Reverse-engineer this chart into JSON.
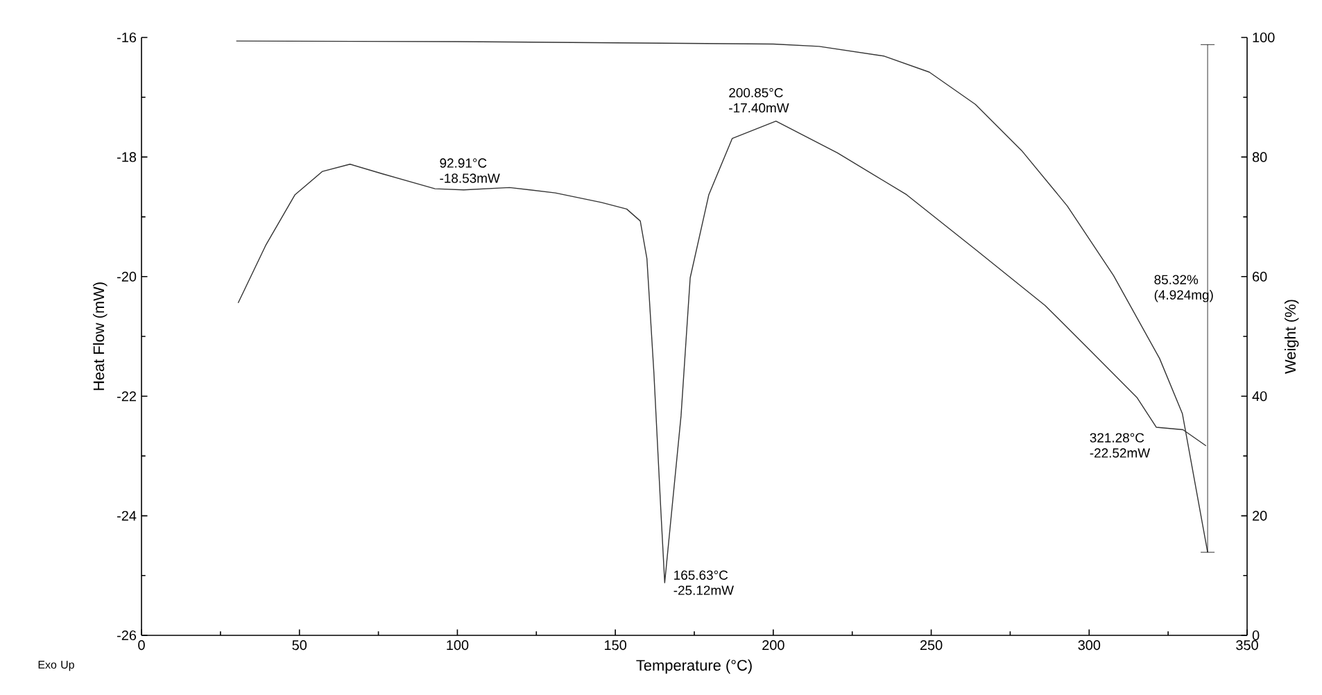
{
  "chart_data": {
    "type": "line",
    "xlabel": "Temperature (°C)",
    "ylabel": "Heat Flow (mW)",
    "y2label": "Weight (%)",
    "xlim": [
      0,
      350
    ],
    "xticks": [
      0,
      50,
      100,
      150,
      200,
      250,
      300,
      350
    ],
    "ylim": [
      -26,
      -16
    ],
    "yticks": [
      -26,
      -24,
      -22,
      -20,
      -18,
      -16
    ],
    "y2lim": [
      0,
      100
    ],
    "y2ticks": [
      0,
      20,
      40,
      60,
      80,
      100
    ],
    "series": [
      {
        "color": "#333333",
        "x": [
          30.6,
          39.3,
          48.6,
          57.3,
          66.0,
          76.2,
          92.91,
          102,
          116.5,
          131,
          145.6,
          153.6,
          157.9,
          160,
          162.2,
          164.4,
          165.63,
          170.8,
          173.7,
          179.6,
          187,
          200.85,
          220.3,
          242.2,
          264.1,
          286,
          300.6,
          315.1,
          321.28,
          329.7,
          337
        ],
        "values": [
          -20.44,
          -19.48,
          -18.63,
          -18.24,
          -18.12,
          -18.28,
          -18.53,
          -18.55,
          -18.51,
          -18.6,
          -18.76,
          -18.87,
          -19.07,
          -19.7,
          -21.6,
          -23.9,
          -25.12,
          -22.33,
          -20.02,
          -18.63,
          -17.69,
          -17.4,
          -17.93,
          -18.63,
          -19.55,
          -20.48,
          -21.25,
          -22.02,
          -22.52,
          -22.56,
          -22.83
        ]
      },
      {
        "color": "#333333",
        "axis": "y2",
        "x": [
          30,
          100,
          150,
          200,
          214.5,
          234.9,
          249.4,
          264,
          278.6,
          293.1,
          307.7,
          322.3,
          329.5,
          337.5
        ],
        "values": [
          99.4,
          99.3,
          99.1,
          98.9,
          98.5,
          96.9,
          94.2,
          88.8,
          81.1,
          71.8,
          60.2,
          46.3,
          37.1,
          13.9
        ],
        "errors": [
          null,
          null,
          null,
          null,
          null,
          null,
          null,
          null,
          null,
          null,
          null,
          null,
          null,
          [
            13.9,
            98.8
          ]
        ]
      }
    ],
    "line_style": "solid",
    "marker": "none",
    "annotations": [
      {
        "text": "92.91°C -18.53mW",
        "x": 92.91,
        "y": -18.53
      },
      {
        "text": "165.63°C -25.12mW",
        "x": 165.63,
        "y": -25.12
      },
      {
        "text": "200.85°C -17.40mW",
        "x": 200.85,
        "y": -17.4
      },
      {
        "text": "321.28°C -22.52mW",
        "x": 321.28,
        "y": -22.52
      },
      "85.32% (4.924mg)",
      "Exo Up"
    ]
  }
}
